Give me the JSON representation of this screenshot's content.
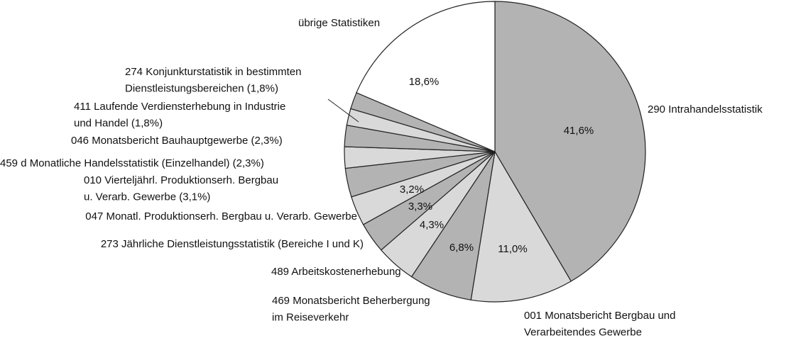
{
  "chart_data": {
    "type": "pie",
    "categories": [
      "290 Intrahandelsstatistik",
      "001 Monatsbericht Bergbau und\nVerarbeitendes Gewerbe",
      "469 Monatsbericht Beherbergung\nim Reiseverkehr",
      "489 Arbeitskostenerhebung",
      "273 Jährliche Dienstleistungsstatistik (Bereiche I und K)",
      "047 Monatl. Produktionserh. Bergbau u. Verarb. Gewerbe",
      "010 Vierteljährl. Produktionserh. Bergbau\nu. Verarb. Gewerbe (3,1%)",
      "459 d Monatliche Handelsstatistik (Einzelhandel) (2,3%)",
      "046 Monatsbericht Bauhauptgewerbe (2,3%)",
      "411 Laufende Verdiensterhebung in Industrie\nund Handel (1,8%)",
      "274 Konjunkturstatistik in bestimmten\nDienstleistungsbereichen (1,8%)",
      "übrige Statistiken"
    ],
    "values": [
      41.6,
      11.0,
      6.8,
      4.3,
      3.3,
      3.2,
      3.1,
      2.3,
      2.3,
      1.8,
      1.8,
      18.6
    ],
    "value_labels": [
      "41,6%",
      "11,0%",
      "6,8%",
      "4,3%",
      "3,3%",
      "3,2%",
      null,
      null,
      null,
      null,
      null,
      "18,6%"
    ],
    "colors": [
      "#b3b3b3",
      "#d9d9d9",
      "#b3b3b3",
      "#d9d9d9",
      "#b3b3b3",
      "#d9d9d9",
      "#b3b3b3",
      "#d9d9d9",
      "#b3b3b3",
      "#d9d9d9",
      "#b3b3b3",
      "#ffffff"
    ]
  }
}
